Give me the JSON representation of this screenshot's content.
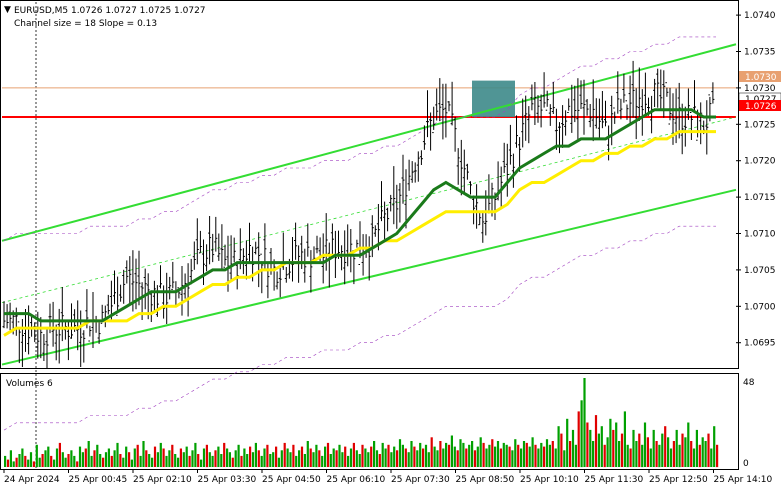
{
  "header": {
    "symbol_line": "EURUSD,M5  1.0726 1.0727 1.0725 1.0727",
    "channel_line": "Channel size = 18 Slope = 0.13"
  },
  "volumes": {
    "label": "Volumes 6",
    "axis_max": "48",
    "axis_min": "0"
  },
  "price_axis": {
    "ticks": [
      "1.0740",
      "1.0735",
      "1.0730",
      "1.0725",
      "1.0720",
      "1.0715",
      "1.0710",
      "1.0705",
      "1.0700",
      "1.0695"
    ],
    "tag_orange": "1.0730",
    "tag_current": "1.0727",
    "tag_red": "1.0726"
  },
  "time_axis": {
    "labels": [
      "24 Apr 2024",
      "25 Apr 00:45",
      "25 Apr 02:10",
      "25 Apr 03:30",
      "25 Apr 04:50",
      "25 Apr 06:10",
      "25 Apr 07:30",
      "25 Apr 08:50",
      "25 Apr 10:10",
      "25 Apr 11:30",
      "25 Apr 12:50",
      "25 Apr 14:10"
    ]
  },
  "colors": {
    "up_bar": "#00a000",
    "down_bar": "#e00000",
    "channel": "#33dd33",
    "ma_fast": "#1a7a1a",
    "ma_slow": "#ffee00",
    "level_red": "#ff0000",
    "level_orange": "#e8a070",
    "highlight_box": "#3d8a8a",
    "envelope": "#a040c0"
  },
  "chart_data": {
    "type": "line",
    "ylim": [
      1.06918,
      1.07418
    ],
    "levels": {
      "red": 1.0726,
      "orange": 1.073
    },
    "highlight": {
      "time_from": "25 Apr 08:45",
      "time_to": "25 Apr 09:15",
      "price_from": 1.0726,
      "price_to": 1.0731
    },
    "price_path": [
      1.0698,
      1.0698,
      1.0697,
      1.0696,
      1.0697,
      1.0697,
      1.0697,
      1.0698,
      1.0698,
      1.0701,
      1.0704,
      1.0703,
      1.0702,
      1.0701,
      1.0702,
      1.0704,
      1.0707,
      1.0708,
      1.0706,
      1.0706,
      1.0708,
      1.0707,
      1.0705,
      1.0706,
      1.0707,
      1.0707,
      1.0707,
      1.0708,
      1.0708,
      1.0708,
      1.0709,
      1.0712,
      1.0714,
      1.0718,
      1.0722,
      1.0726,
      1.0727,
      1.0722,
      1.0716,
      1.0712,
      1.0715,
      1.0719,
      1.0723,
      1.0727,
      1.0727,
      1.0725,
      1.0727,
      1.0727,
      1.0727,
      1.0724,
      1.0727,
      1.0728,
      1.0729,
      1.0729,
      1.0728,
      1.0726,
      1.0726,
      1.0725,
      1.0727
    ],
    "ma_fast": [
      1.0699,
      1.0699,
      1.0699,
      1.0698,
      1.0698,
      1.0698,
      1.0698,
      1.0698,
      1.0698,
      1.0699,
      1.07,
      1.0701,
      1.0702,
      1.0702,
      1.0702,
      1.0703,
      1.0704,
      1.0705,
      1.0705,
      1.0706,
      1.0706,
      1.0706,
      1.0706,
      1.0706,
      1.0706,
      1.0706,
      1.0706,
      1.0707,
      1.0707,
      1.0707,
      1.0708,
      1.0709,
      1.071,
      1.0712,
      1.0714,
      1.0716,
      1.0717,
      1.0716,
      1.0715,
      1.0715,
      1.0715,
      1.0717,
      1.0719,
      1.072,
      1.0721,
      1.0722,
      1.0722,
      1.0723,
      1.0723,
      1.0723,
      1.0724,
      1.0725,
      1.0726,
      1.0727,
      1.0727,
      1.0727,
      1.0727,
      1.0726,
      1.0726
    ],
    "ma_slow": [
      1.0696,
      1.0697,
      1.0697,
      1.0697,
      1.0697,
      1.0697,
      1.0697,
      1.0698,
      1.0698,
      1.0698,
      1.0698,
      1.0699,
      1.0699,
      1.07,
      1.07,
      1.0701,
      1.0702,
      1.0703,
      1.0703,
      1.0704,
      1.0704,
      1.0705,
      1.0705,
      1.0706,
      1.0706,
      1.0706,
      1.0707,
      1.0707,
      1.0707,
      1.0708,
      1.0708,
      1.0709,
      1.0709,
      1.071,
      1.0711,
      1.0712,
      1.0713,
      1.0713,
      1.0713,
      1.0713,
      1.0713,
      1.0714,
      1.0716,
      1.0717,
      1.0717,
      1.0718,
      1.0719,
      1.072,
      1.072,
      1.0721,
      1.0721,
      1.0722,
      1.0722,
      1.0723,
      1.0723,
      1.0724,
      1.0724,
      1.0724,
      1.0724
    ],
    "channel_upper": [
      1.0709,
      1.0736
    ],
    "channel_lower": [
      1.0692,
      1.0716
    ],
    "volumes": [
      6,
      4,
      9,
      3,
      5,
      7,
      10,
      6,
      4,
      8,
      3,
      12,
      5,
      7,
      9,
      11,
      6,
      4,
      10,
      13,
      8,
      5,
      7,
      9,
      6,
      3,
      11,
      8,
      10,
      14,
      6,
      9,
      12,
      7,
      5,
      8,
      10,
      6,
      9,
      13,
      7,
      5,
      11,
      8,
      4,
      10,
      12,
      6,
      14,
      9,
      7,
      5,
      11,
      8,
      13,
      10,
      6,
      9,
      12,
      7,
      5,
      10,
      8,
      11,
      6,
      9,
      13,
      7,
      4,
      10,
      12,
      8,
      6,
      9,
      11,
      7,
      13,
      10,
      8,
      5,
      9,
      12,
      6,
      10,
      7,
      11,
      8,
      13,
      9,
      6,
      10,
      12,
      7,
      8,
      11,
      5,
      9,
      13,
      10,
      8,
      12,
      6,
      9,
      11,
      7,
      14,
      10,
      8,
      12,
      9,
      6,
      11,
      13,
      7,
      10,
      9,
      12,
      8,
      11,
      6,
      10,
      13,
      9,
      7,
      12,
      10,
      8,
      11,
      14,
      9,
      7,
      13,
      10,
      12,
      8,
      11,
      9,
      15,
      12,
      10,
      8,
      14,
      11,
      9,
      13,
      10,
      12,
      8,
      16,
      11,
      9,
      14,
      10,
      13,
      12,
      17,
      11,
      9,
      15,
      13,
      10,
      12,
      14,
      9,
      11,
      16,
      13,
      10,
      12,
      15,
      11,
      14,
      10,
      13,
      12,
      11,
      9,
      15,
      12,
      10,
      14,
      13,
      11,
      16,
      12,
      10,
      13,
      11,
      15,
      12,
      14,
      10,
      22,
      18,
      9,
      26,
      14,
      20,
      12,
      30,
      36,
      48,
      24,
      20,
      14,
      28,
      18,
      22,
      12,
      16,
      26,
      20,
      24,
      14,
      18,
      30,
      12,
      10,
      20,
      14,
      18,
      12,
      24,
      16,
      10,
      20,
      14,
      12,
      18,
      22,
      16,
      10,
      14,
      20,
      12,
      18,
      16,
      24,
      14,
      10,
      20,
      12,
      16,
      14,
      18,
      10,
      22,
      12
    ],
    "volume_ylim": [
      0,
      48
    ]
  }
}
